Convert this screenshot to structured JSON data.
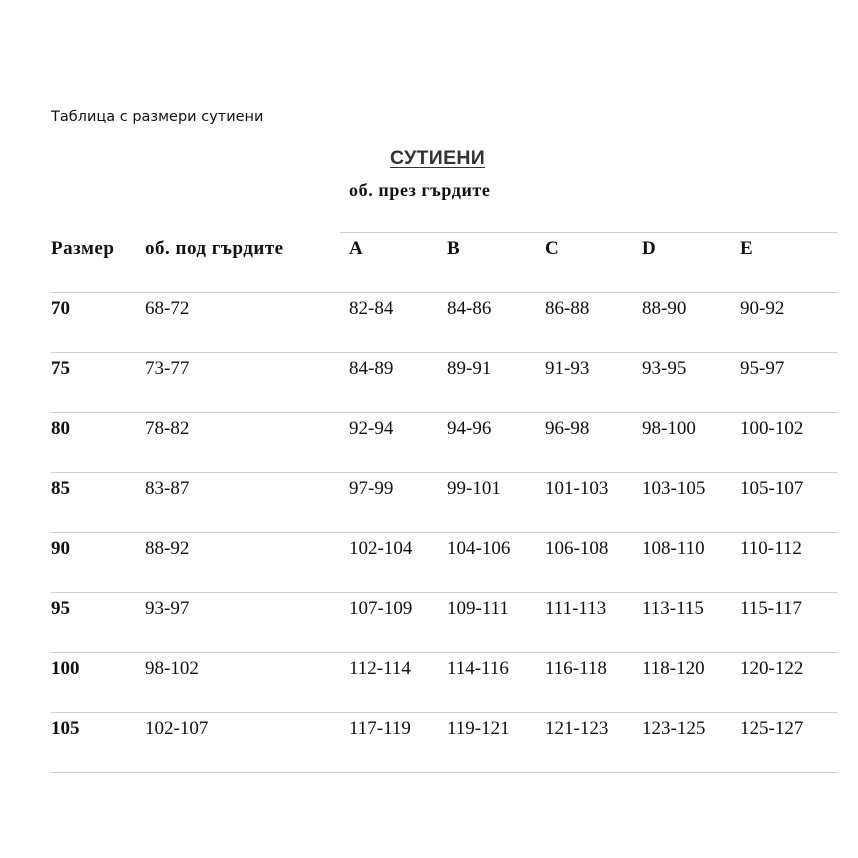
{
  "caption": "Таблица с размери сутиени",
  "title": "СУТИЕНИ",
  "subtitle": "об. през гърдите",
  "headers": [
    "Размер",
    "об. под гърдите",
    "A",
    "B",
    "C",
    "D",
    "E"
  ],
  "rows": [
    [
      "70",
      "68-72",
      "82-84",
      "84-86",
      "86-88",
      "88-90",
      "90-92"
    ],
    [
      "75",
      "73-77",
      "84-89",
      "89-91",
      "91-93",
      "93-95",
      "95-97"
    ],
    [
      "80",
      "78-82",
      "92-94",
      "94-96",
      "96-98",
      "98-100",
      "100-102"
    ],
    [
      "85",
      "83-87",
      "97-99",
      "99-101",
      "101-103",
      "103-105",
      "105-107"
    ],
    [
      "90",
      "88-92",
      "102-104",
      "104-106",
      "106-108",
      "108-110",
      "110-112"
    ],
    [
      "95",
      "93-97",
      "107-109",
      "109-111",
      "111-113",
      "113-115",
      "115-117"
    ],
    [
      "100",
      "98-102",
      "112-114",
      "114-116",
      "116-118",
      "118-120",
      "120-122"
    ],
    [
      "105",
      "102-107",
      "117-119",
      "119-121",
      "121-123",
      "123-125",
      "125-127"
    ]
  ]
}
